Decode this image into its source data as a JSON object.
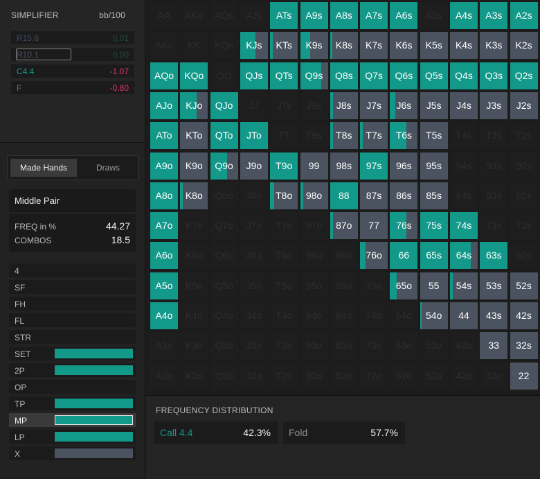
{
  "colors": {
    "call": "#13998a",
    "fold": "#4b5360",
    "empty": "#1e1e1e",
    "pos": "#13998a",
    "neg": "#e0336b"
  },
  "header": {
    "title": "SIMPLIFIER",
    "unit": "bb/100"
  },
  "actions": [
    {
      "name": "R15.8",
      "value": "0.01",
      "style": "dim"
    },
    {
      "name": "R10.1",
      "value": "0.00",
      "style": "selected"
    },
    {
      "name": "C4.4",
      "value": "-1.07",
      "style": "call"
    },
    {
      "name": "F",
      "value": "-0.80",
      "style": "fold"
    }
  ],
  "tabs": {
    "made": "Made Hands",
    "draws": "Draws"
  },
  "selection": {
    "title": "Middle Pair",
    "freq_label": "FREQ in %",
    "freq_value": "44.27",
    "combos_label": "COMBOS",
    "combos_value": "18.5"
  },
  "categories": [
    {
      "label": "4",
      "pct": 0
    },
    {
      "label": "SF",
      "pct": 0
    },
    {
      "label": "FH",
      "pct": 0
    },
    {
      "label": "FL",
      "pct": 0
    },
    {
      "label": "STR",
      "pct": 0
    },
    {
      "label": "SET",
      "pct": 100
    },
    {
      "label": "2P",
      "pct": 100
    },
    {
      "label": "OP",
      "pct": 0
    },
    {
      "label": "TP",
      "pct": 100
    },
    {
      "label": "MP",
      "pct": 100,
      "selected": true
    },
    {
      "label": "LP",
      "pct": 100
    },
    {
      "label": "X",
      "pct": 100,
      "gray": true
    }
  ],
  "grid": {
    "rows": [
      [
        "AA",
        "AKs",
        "AQs",
        "AJs",
        "ATs",
        "A9s",
        "A8s",
        "A7s",
        "A6s",
        "A5s",
        "A4s",
        "A3s",
        "A2s"
      ],
      [
        "AKo",
        "KK",
        "KQs",
        "KJs",
        "KTs",
        "K9s",
        "K8s",
        "K7s",
        "K6s",
        "K5s",
        "K4s",
        "K3s",
        "K2s"
      ],
      [
        "AQo",
        "KQo",
        "QQ",
        "QJs",
        "QTs",
        "Q9s",
        "Q8s",
        "Q7s",
        "Q6s",
        "Q5s",
        "Q4s",
        "Q3s",
        "Q2s"
      ],
      [
        "AJo",
        "KJo",
        "QJo",
        "JJ",
        "JTs",
        "J9s",
        "J8s",
        "J7s",
        "J6s",
        "J5s",
        "J4s",
        "J3s",
        "J2s"
      ],
      [
        "ATo",
        "KTo",
        "QTo",
        "JTo",
        "TT",
        "T9s",
        "T8s",
        "T7s",
        "T6s",
        "T5s",
        "T4s",
        "T3s",
        "T2s"
      ],
      [
        "A9o",
        "K9o",
        "Q9o",
        "J9o",
        "T9o",
        "99",
        "98s",
        "97s",
        "96s",
        "95s",
        "94s",
        "93s",
        "92s"
      ],
      [
        "A8o",
        "K8o",
        "Q8o",
        "J8o",
        "T8o",
        "98o",
        "88",
        "87s",
        "86s",
        "85s",
        "84s",
        "83s",
        "82s"
      ],
      [
        "A7o",
        "K7o",
        "Q7o",
        "J7o",
        "T7o",
        "97o",
        "87o",
        "77",
        "76s",
        "75s",
        "74s",
        "73s",
        "72s"
      ],
      [
        "A6o",
        "K6o",
        "Q6o",
        "J6o",
        "T6o",
        "96o",
        "86o",
        "76o",
        "66",
        "65s",
        "64s",
        "63s",
        "62s"
      ],
      [
        "A5o",
        "K5o",
        "Q5o",
        "J5o",
        "T5o",
        "95o",
        "85o",
        "75o",
        "65o",
        "55",
        "54s",
        "53s",
        "52s"
      ],
      [
        "A4o",
        "K4o",
        "Q4o",
        "J4o",
        "T4o",
        "94o",
        "84o",
        "74o",
        "64o",
        "54o",
        "44",
        "43s",
        "42s"
      ],
      [
        "A3o",
        "K3o",
        "Q3o",
        "J3o",
        "T3o",
        "93o",
        "83o",
        "73o",
        "63o",
        "53o",
        "43o",
        "33",
        "32s"
      ],
      [
        "A2o",
        "K2o",
        "Q2o",
        "J2o",
        "T2o",
        "92o",
        "82o",
        "72o",
        "62o",
        "52o",
        "42o",
        "32o",
        "22"
      ]
    ],
    "call_freq": [
      [
        -1,
        -1,
        -1,
        -1,
        1,
        1,
        1,
        1,
        1,
        -1,
        1,
        1,
        1
      ],
      [
        -1,
        -1,
        -1,
        0.55,
        0.1,
        0.35,
        0.08,
        0,
        0,
        0,
        0,
        0,
        0
      ],
      [
        1,
        1,
        -1,
        1,
        1,
        0.75,
        1,
        1,
        1,
        1,
        1,
        1,
        1
      ],
      [
        1,
        0.6,
        1,
        -1,
        -1,
        -1,
        0.1,
        0,
        0.2,
        0,
        0,
        0,
        0
      ],
      [
        1,
        0,
        1,
        1,
        -1,
        -1,
        0.1,
        0.1,
        0.6,
        0,
        -1,
        -1,
        -1
      ],
      [
        1,
        0,
        0.6,
        0,
        1,
        0,
        0,
        1,
        0,
        0,
        -1,
        -1,
        -1
      ],
      [
        1,
        0.1,
        -1,
        -1,
        0.15,
        0.1,
        1,
        0,
        0,
        0,
        -1,
        -1,
        -1
      ],
      [
        1,
        -1,
        -1,
        -1,
        -1,
        -1,
        0.1,
        0,
        0.6,
        1,
        1,
        -1,
        -1
      ],
      [
        1,
        -1,
        -1,
        -1,
        -1,
        -1,
        -1,
        0.2,
        1,
        1,
        0.75,
        1,
        -1
      ],
      [
        1,
        -1,
        -1,
        -1,
        -1,
        -1,
        -1,
        -1,
        0.25,
        0,
        0.1,
        0,
        0
      ],
      [
        1,
        -1,
        -1,
        -1,
        -1,
        -1,
        -1,
        -1,
        -1,
        0.05,
        0,
        0,
        0
      ],
      [
        -1,
        -1,
        -1,
        -1,
        -1,
        -1,
        -1,
        -1,
        -1,
        -1,
        -1,
        0,
        0
      ],
      [
        -1,
        -1,
        -1,
        -1,
        -1,
        -1,
        -1,
        -1,
        -1,
        -1,
        -1,
        -1,
        0
      ]
    ]
  },
  "frequency": {
    "title": "FREQUENCY DISTRIBUTION",
    "items": [
      {
        "name": "Call 4.4",
        "value": "42.3%",
        "type": "call"
      },
      {
        "name": "Fold",
        "value": "57.7%",
        "type": "fold"
      }
    ]
  }
}
